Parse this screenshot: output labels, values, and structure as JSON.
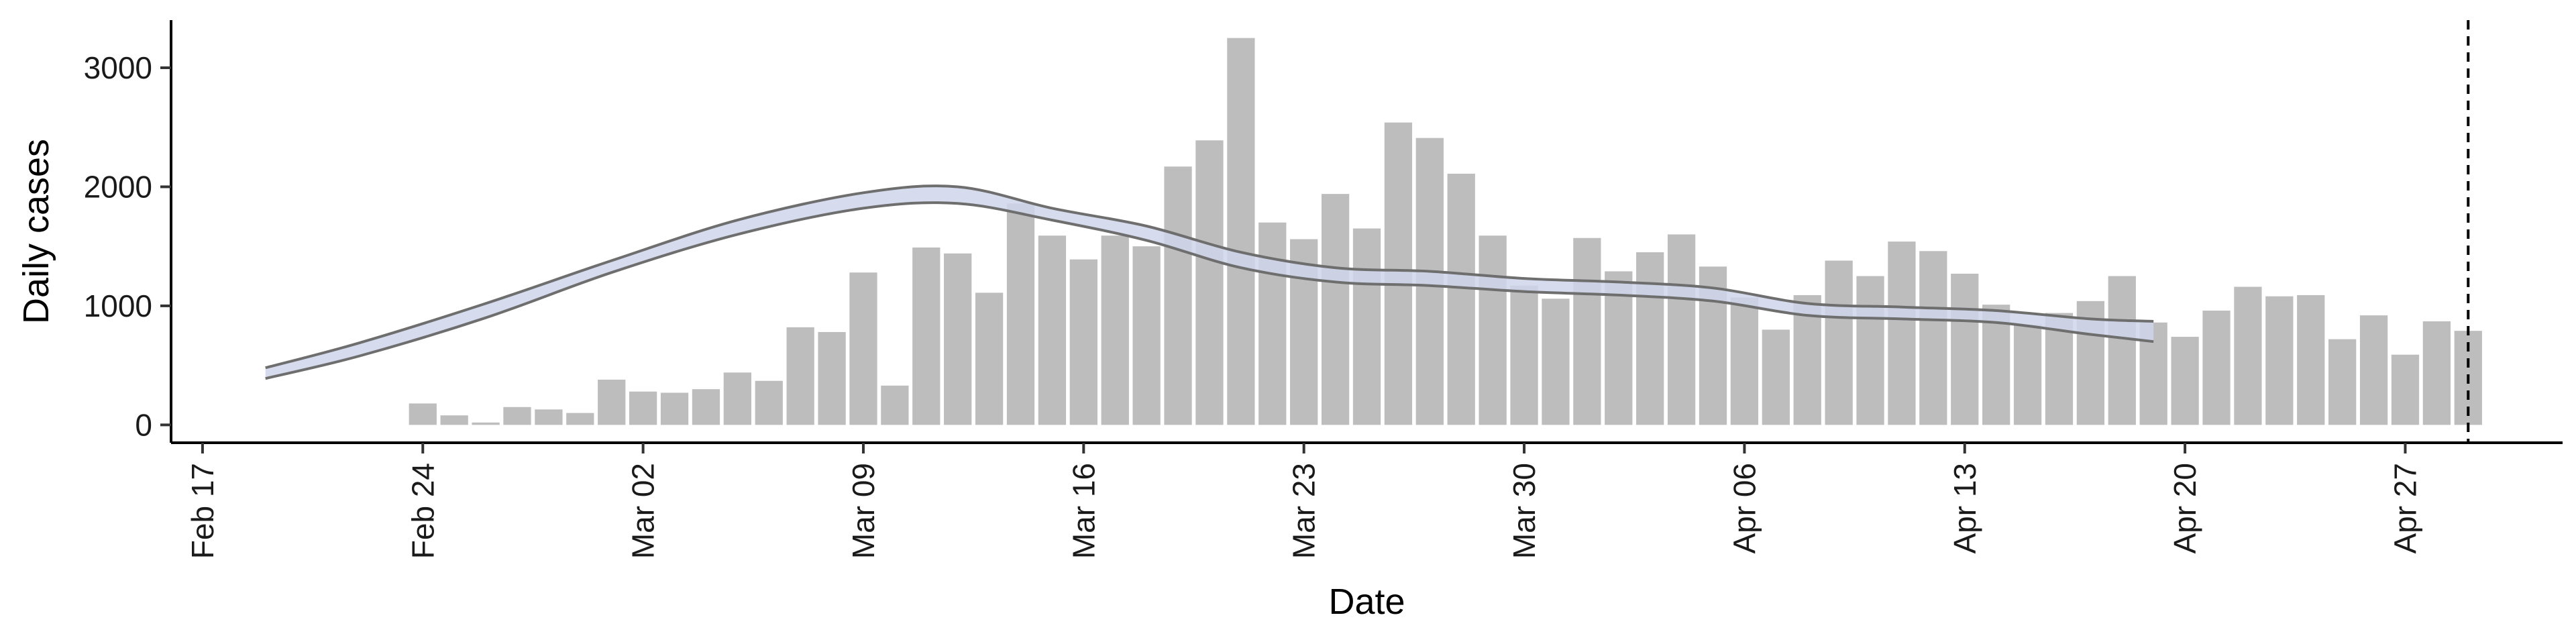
{
  "chart_data": {
    "type": "bar",
    "xlabel": "Date",
    "ylabel": "Daily cases",
    "ylim": [
      -150,
      3400
    ],
    "x_axis": {
      "type": "date",
      "range": [
        "2020-02-16",
        "2020-05-02"
      ],
      "ticks": [
        {
          "date": "2020-02-17",
          "label": "Feb 17"
        },
        {
          "date": "2020-02-24",
          "label": "Feb 24"
        },
        {
          "date": "2020-03-02",
          "label": "Mar 02"
        },
        {
          "date": "2020-03-09",
          "label": "Mar 09"
        },
        {
          "date": "2020-03-16",
          "label": "Mar 16"
        },
        {
          "date": "2020-03-23",
          "label": "Mar 23"
        },
        {
          "date": "2020-03-30",
          "label": "Mar 30"
        },
        {
          "date": "2020-04-06",
          "label": "Apr 06"
        },
        {
          "date": "2020-04-13",
          "label": "Apr 13"
        },
        {
          "date": "2020-04-20",
          "label": "Apr 20"
        },
        {
          "date": "2020-04-27",
          "label": "Apr 27"
        }
      ]
    },
    "y_ticks": [
      0,
      1000,
      2000,
      3000
    ],
    "grid": false,
    "bar_series": {
      "color": "#bdbdbd",
      "dates": [
        "2020-02-24",
        "2020-02-25",
        "2020-02-26",
        "2020-02-27",
        "2020-02-28",
        "2020-02-29",
        "2020-03-01",
        "2020-03-02",
        "2020-03-03",
        "2020-03-04",
        "2020-03-05",
        "2020-03-06",
        "2020-03-07",
        "2020-03-08",
        "2020-03-09",
        "2020-03-10",
        "2020-03-11",
        "2020-03-12",
        "2020-03-13",
        "2020-03-14",
        "2020-03-15",
        "2020-03-16",
        "2020-03-17",
        "2020-03-18",
        "2020-03-19",
        "2020-03-20",
        "2020-03-21",
        "2020-03-22",
        "2020-03-23",
        "2020-03-24",
        "2020-03-25",
        "2020-03-26",
        "2020-03-27",
        "2020-03-28",
        "2020-03-29",
        "2020-03-30",
        "2020-03-31",
        "2020-04-01",
        "2020-04-02",
        "2020-04-03",
        "2020-04-04",
        "2020-04-05",
        "2020-04-06",
        "2020-04-07",
        "2020-04-08",
        "2020-04-09",
        "2020-04-10",
        "2020-04-11",
        "2020-04-12",
        "2020-04-13",
        "2020-04-14",
        "2020-04-15",
        "2020-04-16",
        "2020-04-17",
        "2020-04-18",
        "2020-04-19",
        "2020-04-20",
        "2020-04-21",
        "2020-04-22",
        "2020-04-23",
        "2020-04-24",
        "2020-04-25",
        "2020-04-26",
        "2020-04-27",
        "2020-04-28",
        "2020-04-29"
      ],
      "values": [
        180,
        80,
        20,
        150,
        130,
        100,
        380,
        280,
        270,
        300,
        440,
        370,
        820,
        780,
        1280,
        330,
        1490,
        1440,
        1110,
        1860,
        1590,
        1390,
        1590,
        1500,
        2170,
        2390,
        3250,
        1700,
        1560,
        1940,
        1650,
        2540,
        2410,
        2110,
        1590,
        1170,
        1060,
        1570,
        1290,
        1450,
        1600,
        1330,
        1070,
        800,
        1090,
        1380,
        1250,
        1540,
        1460,
        1270,
        1010,
        840,
        940,
        1040,
        1250,
        860,
        740,
        960,
        1160,
        1080,
        1090,
        720,
        920,
        590,
        870,
        790
      ]
    },
    "trend_series": {
      "stroke": "#6e6e6e",
      "fill": "#cfd6ea",
      "dates": [
        "2020-02-19",
        "2020-02-22",
        "2020-02-26",
        "2020-03-01",
        "2020-03-05",
        "2020-03-09",
        "2020-03-12",
        "2020-03-15",
        "2020-03-18",
        "2020-03-21",
        "2020-03-24",
        "2020-03-27",
        "2020-03-30",
        "2020-04-02",
        "2020-04-05",
        "2020-04-08",
        "2020-04-11",
        "2020-04-14",
        "2020-04-17",
        "2020-04-19"
      ],
      "upper": [
        480,
        690,
        1020,
        1380,
        1720,
        1950,
        2000,
        1820,
        1670,
        1450,
        1320,
        1290,
        1230,
        1200,
        1150,
        1020,
        990,
        960,
        890,
        870
      ],
      "lower": [
        390,
        580,
        900,
        1280,
        1600,
        1820,
        1860,
        1720,
        1550,
        1320,
        1200,
        1170,
        1120,
        1090,
        1040,
        920,
        890,
        860,
        760,
        700
      ]
    },
    "reference_line": {
      "date": "2020-04-29",
      "style": "dashed",
      "color": "#000000"
    }
  }
}
